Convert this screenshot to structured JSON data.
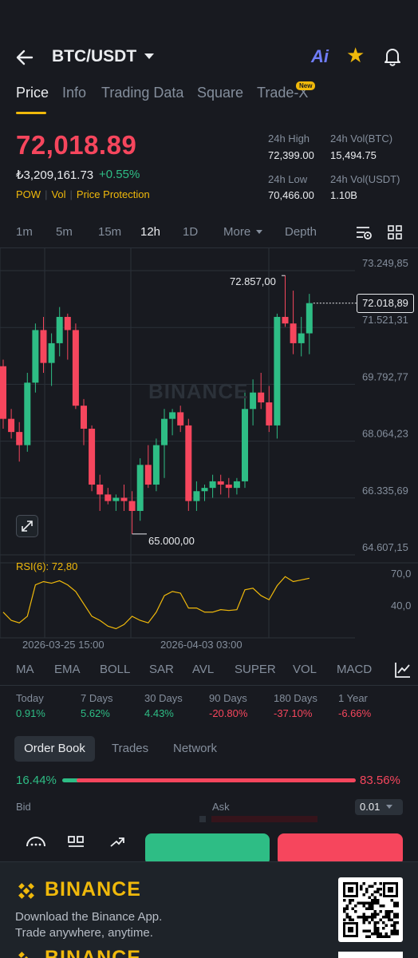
{
  "header": {
    "pair": "BTC/USDT",
    "ai_label": "Ai"
  },
  "tabs": [
    {
      "label": "Price",
      "active": true
    },
    {
      "label": "Info"
    },
    {
      "label": "Trading Data"
    },
    {
      "label": "Square"
    },
    {
      "label": "Trade-X",
      "badge": "New"
    }
  ],
  "price": {
    "last": "72,018.89",
    "fiat": "₺3,209,161.73",
    "change": "+0.55%",
    "tags": [
      "POW",
      "Vol",
      "Price Protection"
    ]
  },
  "stats": {
    "high_label": "24h High",
    "high": "72,399.00",
    "vol_btc_label": "24h Vol(BTC)",
    "vol_btc": "15,494.75",
    "low_label": "24h Low",
    "low": "70,466.00",
    "vol_usdt_label": "24h Vol(USDT)",
    "vol_usdt": "1.10B"
  },
  "intervals": {
    "items": [
      "1m",
      "5m",
      "15m",
      "12h",
      "1D",
      "More",
      "Depth"
    ],
    "active": "12h"
  },
  "chart": {
    "watermark": "BINANCE",
    "last_price_box": "72.018,89",
    "high_marker": "72.857,00",
    "low_marker": "65.000,00",
    "rsi_label": "RSI(6): 72,80",
    "date_left": "2026-03-25 15:00",
    "date_right": "2026-04-03 03:00"
  },
  "chart_data": {
    "type": "candlestick",
    "y_ticks": [
      "73.249,85",
      "71.521,31",
      "69.792,77",
      "68.064,23",
      "66.335,69",
      "64.607,15"
    ],
    "ylim": [
      64607.15,
      73249.85
    ],
    "rsi_ticks": [
      "70,0",
      "40,0"
    ],
    "x_labels": [
      "2026-03-25 15:00",
      "2026-04-03 03:00"
    ],
    "candles": [
      {
        "o": 70100,
        "h": 70300,
        "l": 68200,
        "c": 68500
      },
      {
        "o": 68500,
        "h": 68800,
        "l": 67900,
        "c": 68100
      },
      {
        "o": 68100,
        "h": 68400,
        "l": 67200,
        "c": 67700
      },
      {
        "o": 67700,
        "h": 69900,
        "l": 67500,
        "c": 69600
      },
      {
        "o": 69600,
        "h": 71400,
        "l": 69300,
        "c": 71200
      },
      {
        "o": 71200,
        "h": 71600,
        "l": 69900,
        "c": 70200
      },
      {
        "o": 70200,
        "h": 71100,
        "l": 69500,
        "c": 70800
      },
      {
        "o": 70800,
        "h": 71900,
        "l": 70400,
        "c": 71600
      },
      {
        "o": 71600,
        "h": 71700,
        "l": 70300,
        "c": 71200
      },
      {
        "o": 71200,
        "h": 71400,
        "l": 68800,
        "c": 68900
      },
      {
        "o": 68900,
        "h": 69100,
        "l": 67700,
        "c": 68200
      },
      {
        "o": 68200,
        "h": 68300,
        "l": 66300,
        "c": 66500
      },
      {
        "o": 66500,
        "h": 66800,
        "l": 65700,
        "c": 66200
      },
      {
        "o": 66200,
        "h": 66400,
        "l": 65900,
        "c": 66000
      },
      {
        "o": 66000,
        "h": 66200,
        "l": 65700,
        "c": 66100
      },
      {
        "o": 66100,
        "h": 66500,
        "l": 65700,
        "c": 66000
      },
      {
        "o": 66000,
        "h": 66300,
        "l": 65000,
        "c": 65700
      },
      {
        "o": 65700,
        "h": 67300,
        "l": 65400,
        "c": 67100
      },
      {
        "o": 67100,
        "h": 67700,
        "l": 66400,
        "c": 66500
      },
      {
        "o": 66500,
        "h": 67900,
        "l": 66300,
        "c": 67700
      },
      {
        "o": 67700,
        "h": 68800,
        "l": 66700,
        "c": 68500
      },
      {
        "o": 68500,
        "h": 68800,
        "l": 68000,
        "c": 68700
      },
      {
        "o": 68700,
        "h": 68900,
        "l": 68100,
        "c": 68300
      },
      {
        "o": 68300,
        "h": 68500,
        "l": 65700,
        "c": 66000
      },
      {
        "o": 66000,
        "h": 66600,
        "l": 65700,
        "c": 66300
      },
      {
        "o": 66300,
        "h": 66500,
        "l": 66000,
        "c": 66400
      },
      {
        "o": 66400,
        "h": 66800,
        "l": 66100,
        "c": 66600
      },
      {
        "o": 66600,
        "h": 66800,
        "l": 66200,
        "c": 66500
      },
      {
        "o": 66500,
        "h": 66700,
        "l": 66100,
        "c": 66400
      },
      {
        "o": 66400,
        "h": 66700,
        "l": 66200,
        "c": 66600
      },
      {
        "o": 66600,
        "h": 69300,
        "l": 66400,
        "c": 68800
      },
      {
        "o": 68800,
        "h": 69700,
        "l": 68300,
        "c": 69300
      },
      {
        "o": 69300,
        "h": 69900,
        "l": 68800,
        "c": 69000
      },
      {
        "o": 69000,
        "h": 69500,
        "l": 68100,
        "c": 68300
      },
      {
        "o": 68300,
        "h": 71700,
        "l": 67900,
        "c": 71600
      },
      {
        "o": 71600,
        "h": 72857,
        "l": 71300,
        "c": 71400
      },
      {
        "o": 71400,
        "h": 72399,
        "l": 70466,
        "c": 70800
      },
      {
        "o": 70800,
        "h": 71600,
        "l": 70400,
        "c": 71100
      },
      {
        "o": 71100,
        "h": 72300,
        "l": 70466,
        "c": 72018.89
      }
    ],
    "rsi": [
      35,
      25,
      22,
      30,
      68,
      72,
      70,
      73,
      68,
      60,
      45,
      30,
      25,
      18,
      15,
      20,
      30,
      25,
      22,
      35,
      55,
      60,
      58,
      40,
      40,
      35,
      35,
      38,
      37,
      38,
      62,
      64,
      55,
      50,
      67,
      78,
      72,
      74,
      76
    ]
  },
  "indicators": [
    "MA",
    "EMA",
    "BOLL",
    "SAR",
    "AVL",
    "SUPER",
    "VOL",
    "MACD"
  ],
  "performance": [
    {
      "label": "Today",
      "value": "0.91%",
      "up": true
    },
    {
      "label": "7 Days",
      "value": "5.62%",
      "up": true
    },
    {
      "label": "30 Days",
      "value": "4.43%",
      "up": true
    },
    {
      "label": "90 Days",
      "value": "-20.80%",
      "up": false
    },
    {
      "label": "180 Days",
      "value": "-37.10%",
      "up": false
    },
    {
      "label": "1 Year",
      "value": "-6.66%",
      "up": false
    }
  ],
  "orderbook": {
    "tabs": [
      "Order Book",
      "Trades",
      "Network"
    ],
    "bid_pct": "16.44%",
    "ask_pct": "83.56%",
    "bid_ratio": 0.1644,
    "bid_label": "Bid",
    "ask_label": "Ask",
    "precision": "0.01"
  },
  "promo": {
    "brand": "BINANCE",
    "line1": "Download the Binance App.",
    "line2": "Trade anywhere, anytime."
  },
  "colors": {
    "up": "#2ebd85",
    "down": "#f6465d",
    "accent": "#f0b90b",
    "background": "#181a20"
  }
}
